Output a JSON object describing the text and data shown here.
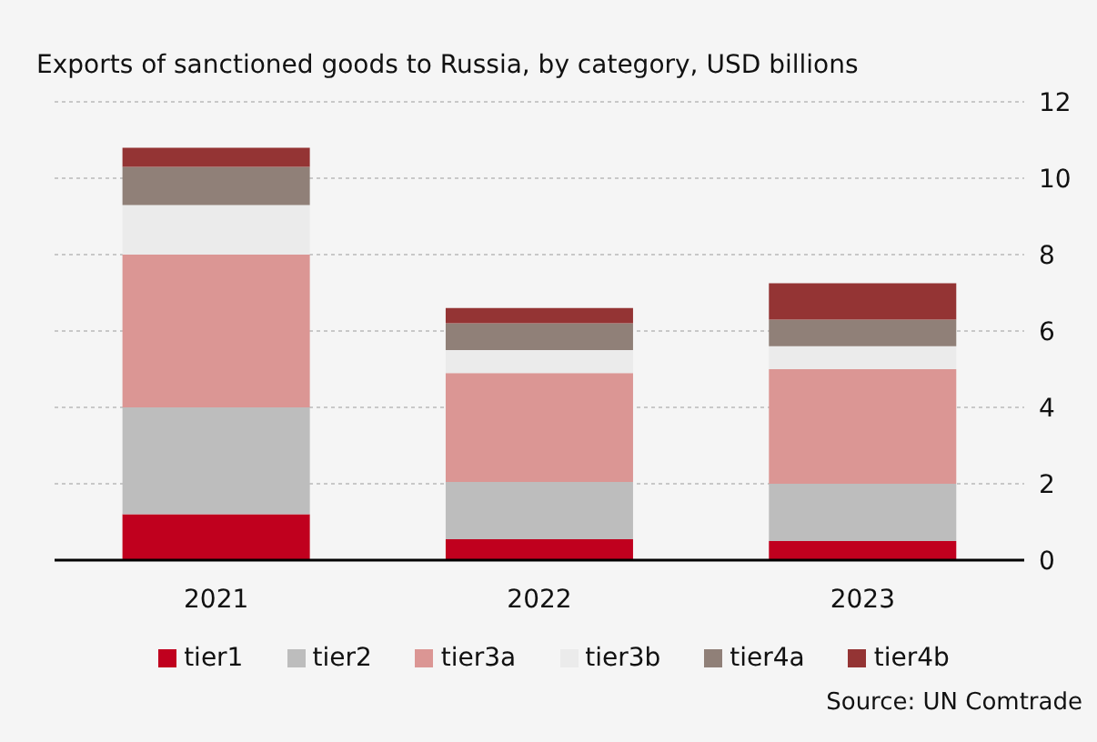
{
  "chart_data": {
    "type": "bar",
    "stacked": true,
    "title": "Exports of sanctioned goods to Russia, by category, USD billions",
    "categories": [
      "2021",
      "2022",
      "2023"
    ],
    "series": [
      {
        "name": "tier1",
        "color": "#c0001e",
        "values": [
          1.2,
          0.55,
          0.5
        ]
      },
      {
        "name": "tier2",
        "color": "#bdbdbd",
        "values": [
          2.8,
          1.5,
          1.5
        ]
      },
      {
        "name": "tier3a",
        "color": "#db9694",
        "values": [
          4.0,
          2.85,
          3.0
        ]
      },
      {
        "name": "tier3b",
        "color": "#ebebeb",
        "values": [
          1.3,
          0.6,
          0.6
        ]
      },
      {
        "name": "tier4a",
        "color": "#908078",
        "values": [
          1.0,
          0.7,
          0.7
        ]
      },
      {
        "name": "tier4b",
        "color": "#943434",
        "values": [
          0.5,
          0.4,
          0.95
        ]
      }
    ],
    "ylim": [
      0,
      12
    ],
    "yticks": [
      0,
      2,
      4,
      6,
      8,
      10,
      12
    ],
    "grid": "y",
    "legend": "bottom",
    "annotations": [
      "Source: UN Comtrade"
    ]
  }
}
